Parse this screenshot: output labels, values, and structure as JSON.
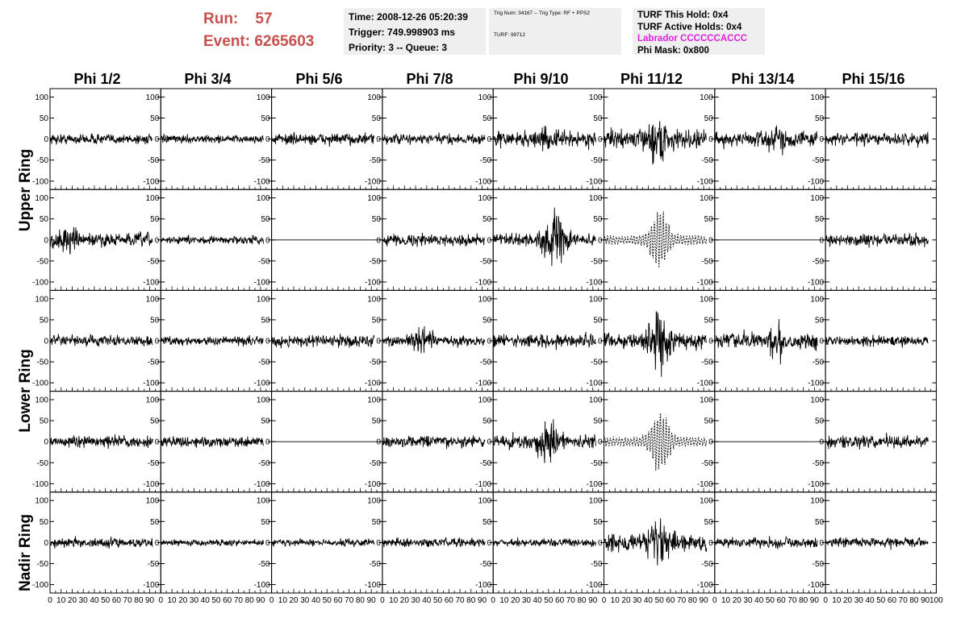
{
  "header": {
    "run_label": "Run:",
    "run_value": "57",
    "event_label": "Event:",
    "event_value": "6265603"
  },
  "time_box": {
    "time": "Time: 2008-12-26 05:20:39",
    "trigger": "Trigger: 749.998903 ms",
    "priority": "Priority: 3 -- Queue: 3"
  },
  "trig_box": {
    "trig": "Trig Num: 34167 -- Trig Type: RF + PPS2",
    "turf": "TURF: 99712"
  },
  "turf_box": {
    "this_hold": "TURF This Hold: 0x4",
    "active_holds": "TURF Active Holds: 0x4",
    "labrador": "Labrador CCCCCCACCC",
    "phi_mask": "Phi Mask: 0x800",
    "labrador_color": "#e020e0"
  },
  "chart_data": {
    "type": "line",
    "columns": [
      "Phi 1/2",
      "Phi 3/4",
      "Phi 5/6",
      "Phi 7/8",
      "Phi 9/10",
      "Phi 11/12",
      "Phi 13/14",
      "Phi 15/16"
    ],
    "rows": [
      "Upper Ring",
      "Lower Ring",
      "Nadir Ring"
    ],
    "panel_rows": 5,
    "xlim": [
      0,
      100
    ],
    "ylim": [
      -120,
      120
    ],
    "y_ticks": [
      -100,
      -50,
      0,
      50,
      100
    ],
    "x_tick_labels": [
      "0",
      "10",
      "20",
      "30",
      "40",
      "50",
      "60",
      "70",
      "80",
      "90",
      "100"
    ],
    "panels": [
      [
        {
          "amp": 12
        },
        {
          "amp": 9
        },
        {
          "amp": 13
        },
        {
          "amp": 12
        },
        {
          "amp": 18,
          "burst": 10,
          "center": 50
        },
        {
          "amp": 20,
          "burst": 45,
          "center": 50
        },
        {
          "amp": 18,
          "burst": 15,
          "center": 55
        },
        {
          "amp": 14
        }
      ],
      [
        {
          "amp": 16,
          "burst": 20,
          "center": 15
        },
        {
          "amp": 9
        },
        {
          "amp": 0,
          "flat": true
        },
        {
          "amp": 13
        },
        {
          "amp": 15,
          "burst": 50,
          "center": 55
        },
        {
          "amp": 0,
          "dashed": true,
          "burst": 70,
          "center": 50
        },
        {
          "amp": 0,
          "flat": true
        },
        {
          "amp": 14
        }
      ],
      [
        {
          "amp": 12
        },
        {
          "amp": 10
        },
        {
          "amp": 14
        },
        {
          "amp": 12,
          "burst": 25,
          "center": 35
        },
        {
          "amp": 15
        },
        {
          "amp": 20,
          "burst": 55,
          "center": 50
        },
        {
          "amp": 18,
          "burst": 30,
          "center": 55
        },
        {
          "amp": 11
        }
      ],
      [
        {
          "amp": 13
        },
        {
          "amp": 12
        },
        {
          "amp": 0,
          "flat": true
        },
        {
          "amp": 14
        },
        {
          "amp": 16,
          "burst": 45,
          "center": 50
        },
        {
          "amp": 0,
          "dashed": true,
          "burst": 75,
          "center": 50
        },
        {
          "amp": 0,
          "flat": true
        },
        {
          "amp": 15
        }
      ],
      [
        {
          "amp": 11
        },
        {
          "amp": 7
        },
        {
          "amp": 8
        },
        {
          "amp": 10
        },
        {
          "amp": 9
        },
        {
          "amp": 22,
          "burst": 45,
          "center": 50
        },
        {
          "amp": 12
        },
        {
          "amp": 11
        }
      ]
    ]
  }
}
